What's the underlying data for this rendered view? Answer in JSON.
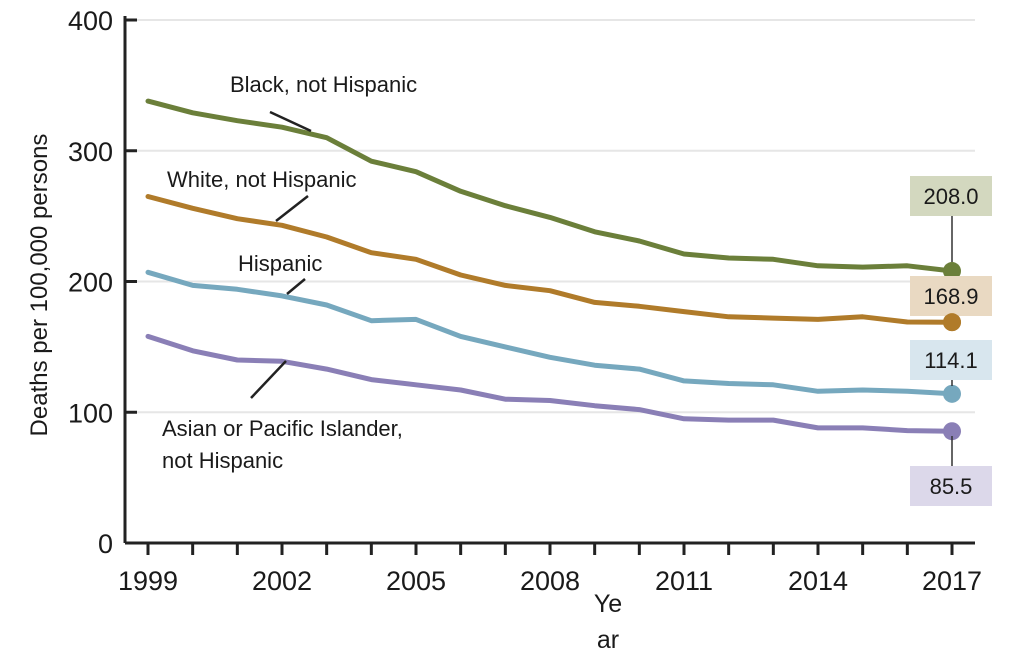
{
  "chart_data": {
    "type": "line",
    "title": "",
    "xlabel": "Year",
    "ylabel": "Deaths per 100,000 persons",
    "xlim": [
      1999,
      2017
    ],
    "ylim": [
      0,
      400
    ],
    "x_ticks": [
      1999,
      2002,
      2005,
      2008,
      2011,
      2014,
      2017
    ],
    "x_tick_labels": [
      "1999",
      "2002",
      "2005",
      "2008",
      "2011",
      "2014",
      "2017"
    ],
    "y_ticks": [
      0,
      100,
      200,
      300,
      400
    ],
    "y_tick_labels": [
      "0",
      "100",
      "200",
      "300",
      "400"
    ],
    "grid": "horizontal",
    "x": [
      1999,
      2000,
      2001,
      2002,
      2003,
      2004,
      2005,
      2006,
      2007,
      2008,
      2009,
      2010,
      2011,
      2012,
      2013,
      2014,
      2015,
      2016,
      2017
    ],
    "series": [
      {
        "name": "Black, not Hispanic",
        "color": "#6b7f3a",
        "end_label": "208.0",
        "end_label_bg": "#d3d8bf",
        "values": [
          338,
          329,
          323,
          318,
          310,
          292,
          284,
          269,
          258,
          249,
          238,
          231,
          221,
          218,
          217,
          212,
          211,
          212,
          208.0
        ]
      },
      {
        "name": "White, not Hispanic",
        "color": "#b07b2a",
        "end_label": "168.9",
        "end_label_bg": "#e9d9c2",
        "values": [
          265,
          256,
          248,
          243,
          234,
          222,
          217,
          205,
          197,
          193,
          184,
          181,
          177,
          173,
          172,
          171,
          173,
          169,
          168.9
        ]
      },
      {
        "name": "Hispanic",
        "color": "#76a8be",
        "end_label": "114.1",
        "end_label_bg": "#d8e6ee",
        "values": [
          207,
          197,
          194,
          189,
          182,
          170,
          171,
          158,
          150,
          142,
          136,
          133,
          124,
          122,
          121,
          116,
          117,
          116,
          114.1
        ]
      },
      {
        "name": "Asian or Pacific Islander, not Hispanic",
        "label_lines": [
          "Asian or Pacific Islander,",
          "not Hispanic"
        ],
        "color": "#8a7fb6",
        "end_label": "85.5",
        "end_label_bg": "#dcd8ea",
        "values": [
          158,
          147,
          140,
          139,
          133,
          125,
          121,
          117,
          110,
          109,
          105,
          102,
          95,
          94,
          94,
          88,
          88,
          86,
          85.5
        ]
      }
    ]
  }
}
